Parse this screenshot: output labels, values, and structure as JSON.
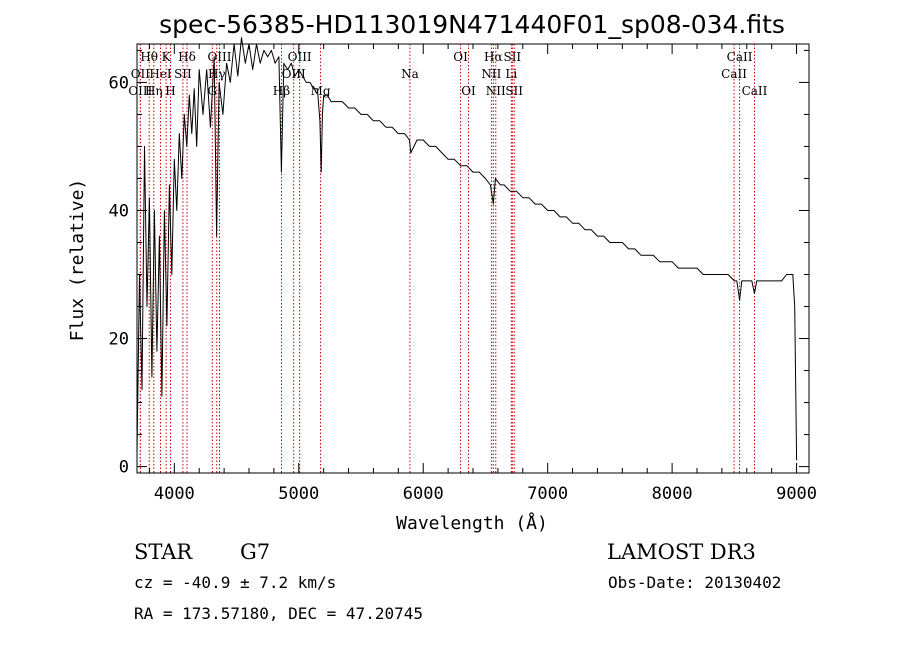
{
  "chart_data": {
    "type": "line",
    "title": "spec-56385-HD113019N471440F01_sp08-034.fits",
    "xlabel": "Wavelength (Å)",
    "ylabel": "Flux (relative)",
    "xlim": [
      3700,
      9100
    ],
    "ylim": [
      -1,
      66
    ],
    "xticks": [
      4000,
      5000,
      6000,
      7000,
      8000,
      9000
    ],
    "yticks": [
      0,
      20,
      40,
      60
    ],
    "series": [
      {
        "name": "flux",
        "x": [
          3700,
          3720,
          3740,
          3760,
          3780,
          3800,
          3820,
          3840,
          3860,
          3880,
          3900,
          3920,
          3940,
          3960,
          3980,
          4000,
          4020,
          4040,
          4060,
          4080,
          4100,
          4120,
          4140,
          4160,
          4180,
          4200,
          4230,
          4260,
          4290,
          4320,
          4340,
          4360,
          4390,
          4420,
          4450,
          4480,
          4510,
          4540,
          4570,
          4600,
          4630,
          4660,
          4690,
          4720,
          4750,
          4780,
          4810,
          4840,
          4860,
          4880,
          4910,
          4940,
          4970,
          5000,
          5030,
          5060,
          5090,
          5120,
          5150,
          5170,
          5180,
          5190,
          5200,
          5230,
          5260,
          5300,
          5350,
          5400,
          5450,
          5500,
          5550,
          5600,
          5650,
          5700,
          5750,
          5800,
          5850,
          5890,
          5900,
          5950,
          6000,
          6050,
          6100,
          6150,
          6200,
          6250,
          6300,
          6350,
          6400,
          6450,
          6500,
          6540,
          6563,
          6580,
          6620,
          6650,
          6700,
          6750,
          6800,
          6850,
          6900,
          6950,
          7000,
          7050,
          7100,
          7150,
          7200,
          7250,
          7300,
          7350,
          7400,
          7450,
          7500,
          7550,
          7600,
          7650,
          7700,
          7750,
          7800,
          7850,
          7900,
          7950,
          8000,
          8050,
          8100,
          8150,
          8200,
          8250,
          8300,
          8350,
          8400,
          8450,
          8500,
          8520,
          8542,
          8560,
          8600,
          8640,
          8662,
          8680,
          8720,
          8760,
          8800,
          8840,
          8880,
          8920,
          8950,
          8970,
          8985,
          8995,
          9000
        ],
        "values": [
          2,
          30,
          12,
          50,
          25,
          42,
          14,
          40,
          18,
          36,
          11,
          40,
          22,
          44,
          30,
          48,
          40,
          52,
          45,
          55,
          50,
          58,
          52,
          59,
          50,
          62,
          55,
          62,
          53,
          64,
          36,
          60,
          55,
          63,
          60,
          66,
          61,
          67,
          63,
          66,
          62,
          66,
          63,
          65,
          64,
          65,
          63,
          64,
          46,
          63,
          62,
          63,
          61,
          62,
          61,
          60,
          60,
          59,
          59,
          54,
          46,
          55,
          58,
          58,
          57,
          57,
          57,
          56,
          56,
          55,
          55,
          54,
          54,
          53,
          53,
          52,
          52,
          51,
          49,
          51,
          51,
          50,
          50,
          49,
          48,
          48,
          47,
          47,
          46,
          46,
          45,
          44,
          41,
          45,
          44,
          44,
          43,
          43,
          42,
          42,
          41,
          41,
          40,
          40,
          39,
          39,
          38,
          38,
          37,
          37,
          36,
          36,
          35,
          35,
          35,
          34,
          34,
          33,
          33,
          33,
          32,
          32,
          32,
          31,
          31,
          31,
          31,
          30,
          30,
          30,
          30,
          30,
          29,
          29,
          26,
          29,
          29,
          29,
          27,
          29,
          29,
          29,
          29,
          29,
          29,
          30,
          30,
          30,
          25,
          10,
          1
        ]
      }
    ],
    "lines": [
      {
        "label": "Hθ",
        "wl": 3798,
        "row": 0
      },
      {
        "label": "OII",
        "wl": 3727,
        "row": 1
      },
      {
        "label": "OIII",
        "wl": 3727,
        "row": 2
      },
      {
        "label": "K",
        "wl": 3934,
        "row": 0
      },
      {
        "label": "Hδ",
        "wl": 4102,
        "row": 0
      },
      {
        "label": "HeI",
        "wl": 3889,
        "row": 1
      },
      {
        "label": "SII",
        "wl": 4069,
        "row": 1
      },
      {
        "label": "Hη",
        "wl": 3835,
        "row": 2
      },
      {
        "label": "H",
        "wl": 3969,
        "row": 2
      },
      {
        "label": "OIII",
        "wl": 4363,
        "row": 0
      },
      {
        "label": "Hγ",
        "wl": 4341,
        "row": 1
      },
      {
        "label": "G",
        "wl": 4305,
        "row": 2
      },
      {
        "label": "OIII",
        "wl": 5007,
        "row": 0
      },
      {
        "label": "OIII",
        "wl": 4959,
        "row": 1
      },
      {
        "label": "Hβ",
        "wl": 4861,
        "row": 2
      },
      {
        "label": "Mg",
        "wl": 5175,
        "row": 2
      },
      {
        "label": "Na",
        "wl": 5893,
        "row": 1
      },
      {
        "label": "OI",
        "wl": 6300,
        "row": 0
      },
      {
        "label": "OI",
        "wl": 6364,
        "row": 2
      },
      {
        "label": "Hα",
        "wl": 6563,
        "row": 0
      },
      {
        "label": "SII",
        "wl": 6716,
        "row": 0
      },
      {
        "label": "NII",
        "wl": 6548,
        "row": 1
      },
      {
        "label": "Li",
        "wl": 6708,
        "row": 1
      },
      {
        "label": "NII",
        "wl": 6583,
        "row": 2
      },
      {
        "label": "SII",
        "wl": 6731,
        "row": 2
      },
      {
        "label": "CaII",
        "wl": 8542,
        "row": 0
      },
      {
        "label": "CaII",
        "wl": 8498,
        "row": 1
      },
      {
        "label": "CaII",
        "wl": 8662,
        "row": 2
      }
    ]
  },
  "info": {
    "object_class": "STAR",
    "subclass": "G7",
    "survey": "LAMOST DR3",
    "cz": "cz = -40.9 ± 7.2 km/s",
    "obs_date": "Obs-Date: 20130402",
    "radec": "RA = 173.57180, DEC =  47.20745"
  }
}
